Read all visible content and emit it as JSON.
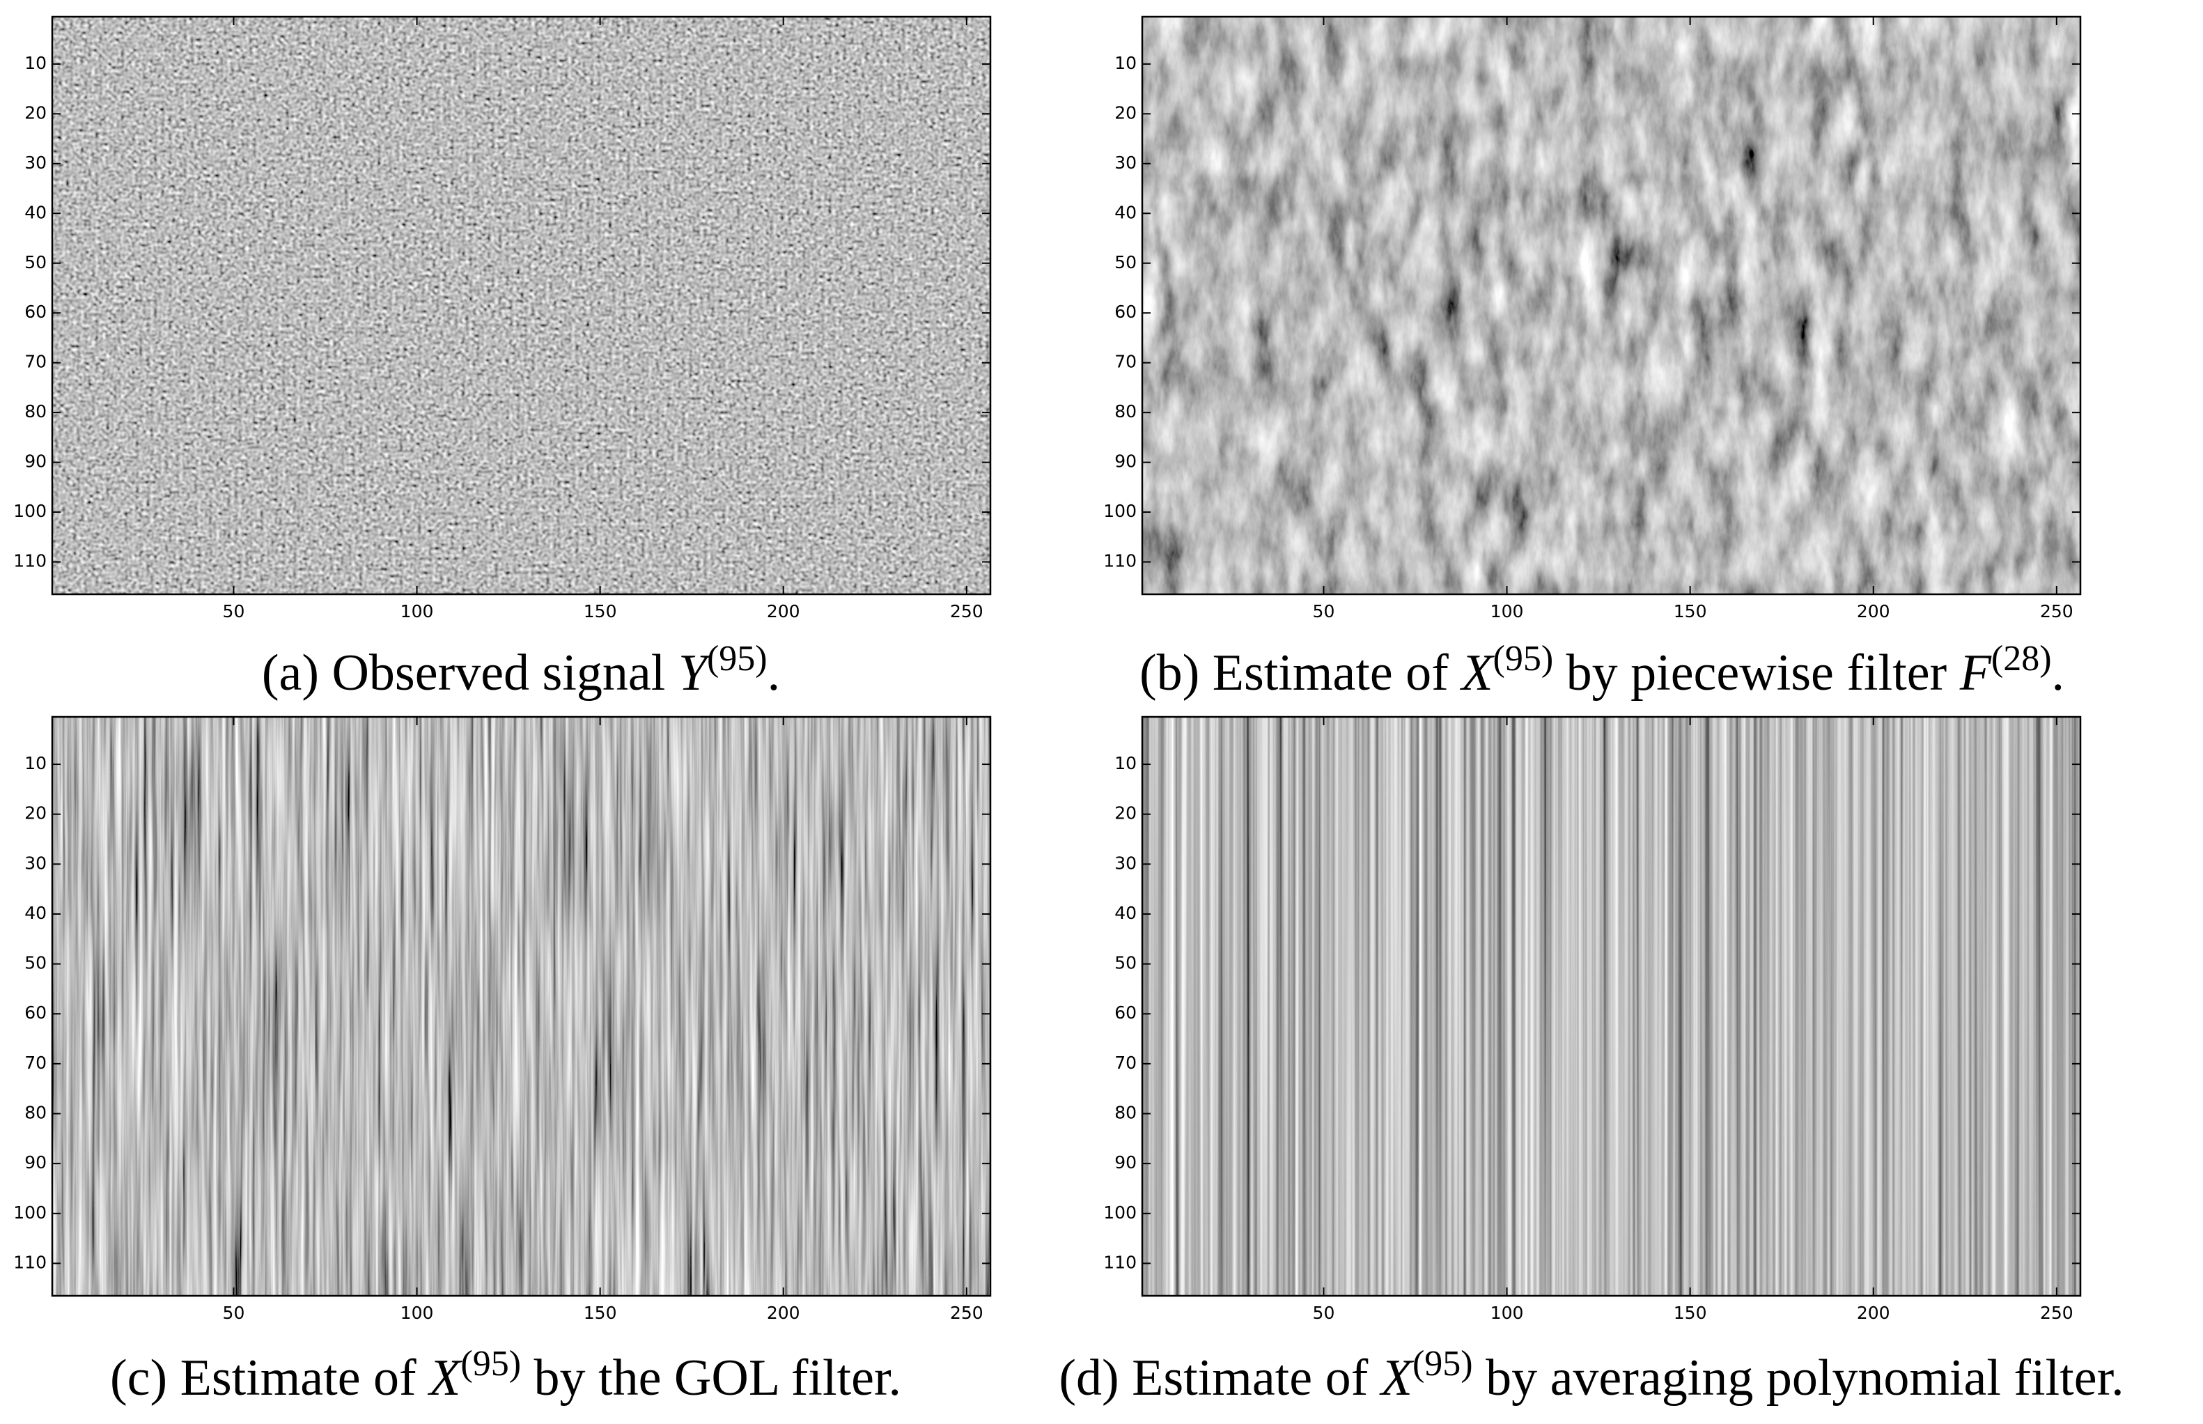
{
  "chart_data": [
    {
      "type": "image",
      "caption": [
        {
          "text": "(a) Observed signal ",
          "style": "normal"
        },
        {
          "text": "Y",
          "style": "italic"
        },
        {
          "text": "(95)",
          "style": "sup"
        },
        {
          "text": ".",
          "style": "normal"
        }
      ],
      "xlim": [
        0.5,
        256.5
      ],
      "xticks": [
        50,
        100,
        150,
        200,
        250
      ],
      "ylim": [
        116.5,
        0.5
      ],
      "yticks": [
        10,
        20,
        30,
        40,
        50,
        60,
        70,
        80,
        90,
        100,
        110
      ]
    },
    {
      "type": "image",
      "caption": [
        {
          "text": "(b) Estimate of ",
          "style": "normal"
        },
        {
          "text": "X",
          "style": "italic"
        },
        {
          "text": "(95)",
          "style": "sup"
        },
        {
          "text": " by piecewise filter ",
          "style": "normal"
        },
        {
          "text": "F",
          "style": "italic"
        },
        {
          "text": "(28)",
          "style": "sup"
        },
        {
          "text": ".",
          "style": "normal"
        }
      ],
      "xlim": [
        0.5,
        256.5
      ],
      "xticks": [
        50,
        100,
        150,
        200,
        250
      ],
      "ylim": [
        116.5,
        0.5
      ],
      "yticks": [
        10,
        20,
        30,
        40,
        50,
        60,
        70,
        80,
        90,
        100,
        110
      ]
    },
    {
      "type": "image",
      "caption": [
        {
          "text": "(c) Estimate of ",
          "style": "normal"
        },
        {
          "text": "X",
          "style": "italic"
        },
        {
          "text": "(95)",
          "style": "sup"
        },
        {
          "text": " by the GOL filter.",
          "style": "normal"
        }
      ],
      "xlim": [
        0.5,
        256.5
      ],
      "xticks": [
        50,
        100,
        150,
        200,
        250
      ],
      "ylim": [
        116.5,
        0.5
      ],
      "yticks": [
        10,
        20,
        30,
        40,
        50,
        60,
        70,
        80,
        90,
        100,
        110
      ]
    },
    {
      "type": "image",
      "caption": [
        {
          "text": "(d) Estimate of ",
          "style": "normal"
        },
        {
          "text": "X",
          "style": "italic"
        },
        {
          "text": "(95)",
          "style": "sup"
        },
        {
          "text": " by averaging polynomial filter.",
          "style": "normal"
        }
      ],
      "xlim": [
        0.5,
        256.5
      ],
      "xticks": [
        50,
        100,
        150,
        200,
        250
      ],
      "ylim": [
        116.5,
        0.5
      ],
      "yticks": [
        10,
        20,
        30,
        40,
        50,
        60,
        70,
        80,
        90,
        100,
        110
      ]
    }
  ]
}
